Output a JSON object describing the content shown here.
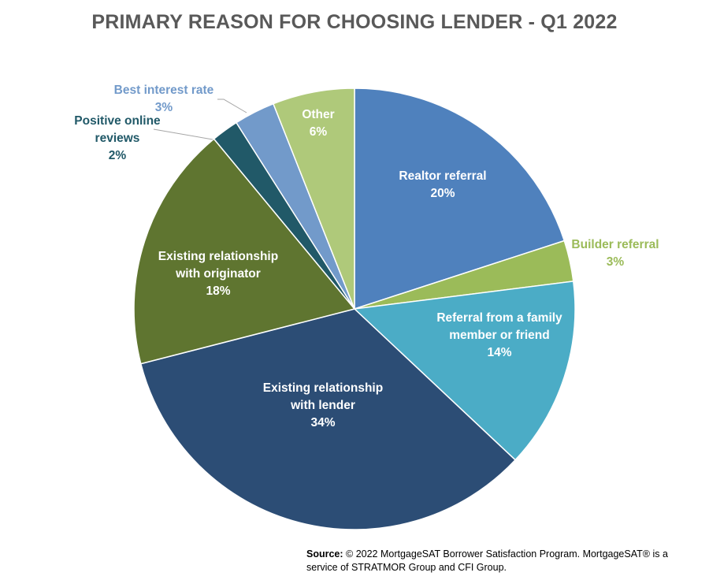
{
  "chart_data": {
    "type": "pie",
    "title": "PRIMARY REASON FOR CHOOSING LENDER - Q1 2022",
    "slices": [
      {
        "label_lines": [
          "Realtor referral"
        ],
        "pct_label": "20%",
        "value": 20,
        "color": "#4f81bd",
        "label_color": "#ffffff"
      },
      {
        "label_lines": [
          "Builder referral"
        ],
        "pct_label": "3%",
        "value": 3,
        "color": "#9bbb59",
        "label_color": "#9bbb59"
      },
      {
        "label_lines": [
          "Referral from a family",
          "member or friend"
        ],
        "pct_label": "14%",
        "value": 14,
        "color": "#4bacc6",
        "label_color": "#ffffff"
      },
      {
        "label_lines": [
          "Existing relationship",
          "with lender"
        ],
        "pct_label": "34%",
        "value": 34,
        "color": "#2c4d75",
        "label_color": "#ffffff"
      },
      {
        "label_lines": [
          "Existing relationship",
          "with originator"
        ],
        "pct_label": "18%",
        "value": 18,
        "color": "#5f7530",
        "label_color": "#ffffff"
      },
      {
        "label_lines": [
          "Positive online",
          "reviews"
        ],
        "pct_label": "2%",
        "value": 2,
        "color": "#215968",
        "label_color": "#215968"
      },
      {
        "label_lines": [
          "Best interest rate"
        ],
        "pct_label": "3%",
        "value": 3,
        "color": "#729aca",
        "label_color": "#729aca"
      },
      {
        "label_lines": [
          "Other"
        ],
        "pct_label": "6%",
        "value": 6,
        "color": "#afc97a",
        "label_color": "#ffffff"
      }
    ]
  },
  "source": {
    "label": "Source:",
    "text": " © 2022 MortgageSAT Borrower Satisfaction Program. MortgageSAT® is a service of STRATMOR Group and CFI Group."
  }
}
